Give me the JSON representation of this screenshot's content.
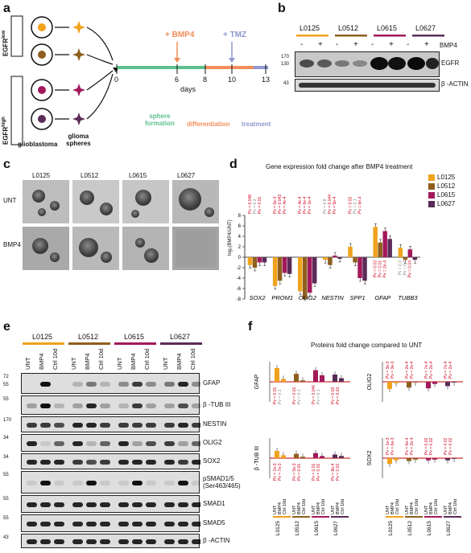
{
  "panels": {
    "a": "a",
    "b": "b",
    "c": "c",
    "d": "d",
    "e": "e",
    "f": "f"
  },
  "colors": {
    "L0125": "#f0a21d",
    "L0512": "#8f5f1e",
    "L0615": "#a3195b",
    "L0627": "#5a2c57",
    "sphere": "#5cbf8c",
    "diff": "#f28d5b",
    "treat": "#8f98d0",
    "red": "#d0021b",
    "grey": "#888888"
  },
  "panel_a": {
    "egfr_low": "EGFR",
    "egfr_low_sup": "low",
    "egfr_high": "EGFR",
    "egfr_high_sup": "high",
    "glioblastoma": "glioblastoma",
    "glioma_spheres": "glioma\nspheres",
    "bmp4": "+ BMP4",
    "tmz": "+ TMZ",
    "days_label": "days",
    "ticks": [
      "0",
      "6",
      "8",
      "10",
      "13"
    ],
    "phase_sphere": "sphere\nformation",
    "phase_diff": "differentiation",
    "phase_treat": "treatment"
  },
  "panel_b": {
    "lines": [
      "L0125",
      "L0512",
      "L0615",
      "L0627"
    ],
    "bmp4_label": "BMP4",
    "signs": [
      "-",
      "+",
      "-",
      "+",
      "-",
      "+",
      "-",
      "+"
    ],
    "egfr": "EGFR",
    "actin": "β -ACTIN",
    "mw_egfr": [
      "170",
      "130"
    ],
    "mw_actin": "43"
  },
  "panel_c": {
    "lines": [
      "L0125",
      "L0512",
      "L0615",
      "L0627"
    ],
    "rows": [
      "UNT",
      "BMP4"
    ]
  },
  "panel_d": {
    "title": "Gene expression fold change after BMP4 treatment",
    "ylabel": "log₂(BMP4/UNT)",
    "legend": [
      "L0125",
      "L0512",
      "L0615",
      "L0627"
    ],
    "genes": [
      "SOX2",
      "PROM1",
      "OLIG2",
      "NESTIN",
      "SPP1",
      "GFAP",
      "TUBB3"
    ],
    "pv_upper": [
      [
        "Pv = 0.048",
        "Pv = 0.2",
        "Pv = 0.01"
      ],
      [
        "Pv = 6e-3",
        "Pv = 0.043",
        "Pv = 4e-4"
      ],
      [
        "Pv = 4e-4",
        "Pv = 6e-4",
        "Pv = 1e-4"
      ],
      [
        "Pv = 0.8",
        "Pv = 0.044",
        "Pv = 5e-4"
      ],
      [
        "Pv = 0.02",
        "Pv = 0.1",
        "Pv = 6e-4"
      ]
    ],
    "pv_lower": [
      [
        "Pv = 0.03",
        "Pv = 0.01",
        "Pv = 2e-4"
      ],
      [
        "Pv = 0.3",
        "Pv = 0.4",
        "Pv = 0.04"
      ]
    ],
    "yticks": [
      "8",
      "6",
      "4",
      "2",
      "0",
      "-2",
      "-4",
      "-6",
      "-8"
    ]
  },
  "chart_data": {
    "type": "bar",
    "title": "Gene expression fold change after BMP4 treatment",
    "ylabel": "log₂(BMP4/UNT)",
    "ylim": [
      -8,
      8
    ],
    "categories": [
      "SOX2",
      "PROM1",
      "OLIG2",
      "NESTIN",
      "SPP1",
      "GFAP",
      "TUBB3"
    ],
    "series": [
      {
        "name": "L0125",
        "values": [
          -1.5,
          -5.5,
          -6.5,
          -0.5,
          2.0,
          5.8,
          1.8
        ]
      },
      {
        "name": "L0512",
        "values": [
          -2.0,
          -4.5,
          -8.0,
          -1.5,
          -1.0,
          2.8,
          -0.5
        ]
      },
      {
        "name": "L0615",
        "values": [
          -1.0,
          -3.0,
          -6.8,
          0.3,
          -4.0,
          5.0,
          1.5
        ]
      },
      {
        "name": "L0627",
        "values": [
          -1.0,
          -3.2,
          -5.0,
          -0.3,
          -4.5,
          3.5,
          -0.5
        ]
      }
    ],
    "legend_position": "top-right"
  },
  "panel_e": {
    "lines": [
      "L0125",
      "L0512",
      "L0615",
      "L0627"
    ],
    "cols": [
      "UNT",
      "BMP4",
      "Ctrl 10d"
    ],
    "rows": [
      {
        "name": "GFAP",
        "mw": [
          "72",
          "55"
        ]
      },
      {
        "name": "β -TUB III",
        "mw": [
          "55"
        ]
      },
      {
        "name": "NESTIN",
        "mw": [
          "170"
        ]
      },
      {
        "name": "OLIG2",
        "mw": [
          "34"
        ]
      },
      {
        "name": "SOX2",
        "mw": [
          "34"
        ]
      },
      {
        "name": "pSMAD1/5\n(Ser463/465)",
        "mw": [
          "55"
        ]
      },
      {
        "name": "SMAD1",
        "mw": [
          "55"
        ]
      },
      {
        "name": "SMAD5",
        "mw": [
          "55"
        ]
      },
      {
        "name": "β -ACTIN",
        "mw": [
          "43"
        ]
      }
    ]
  },
  "panel_f": {
    "title": "Proteins fold change compared to UNT",
    "proteins": [
      "GFAP",
      "OLIG2",
      "β -TUB III",
      "SOX2"
    ],
    "lines": [
      "L0125",
      "L0512",
      "L0615",
      "L0627"
    ],
    "cols": [
      "UNT",
      "BMP4",
      "Ctrl 10d"
    ],
    "gfap_pv": [
      [
        "Pv = 0.01",
        "Pv = 0.1"
      ],
      [
        "Pv = 0.01",
        "Pv = 0.1"
      ],
      [
        "Pv = 0.046",
        "Pv = 0.1"
      ],
      [
        "Pv = 0.03",
        "Pv = 0.03"
      ]
    ],
    "olig2_pv": [
      [
        "Pv = 3e-3",
        "Pv = 3e-3"
      ],
      [
        "Pv = 2e-4",
        "Pv = 2e-4"
      ],
      [
        "Pv = 7e-4",
        "Pv = 2e-4"
      ],
      [
        "Pv = 7e-4",
        "Pv = 2e-4"
      ]
    ],
    "btub_pv": [
      [
        "Pv = 1e-3",
        "Pv = 7e-3"
      ],
      [
        "Pv = 5e-3",
        "Pv = 0.01"
      ],
      [
        "Pv = 0.01",
        "Pv = 0.01"
      ],
      [
        "Pv = 8e-4",
        "Pv = 0.01"
      ]
    ],
    "sox2_pv": [
      [
        "Pv = 1e-3",
        "Pv = 6e-3"
      ],
      [
        "Pv = 6e-4",
        "Pv = 2e-4"
      ],
      [
        "Pv = 0.02",
        "Pv = 0.02"
      ],
      [
        "Pv = 0.02",
        "Pv = 0.02"
      ]
    ]
  }
}
